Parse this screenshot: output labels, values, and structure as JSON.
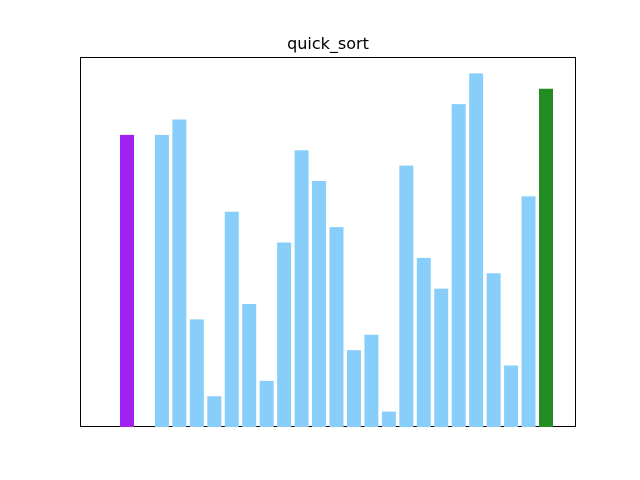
{
  "chart_data": {
    "type": "bar",
    "title": "quick_sort",
    "xlabel": "",
    "ylabel": "",
    "x_ticks": false,
    "y_ticks": false,
    "grid": false,
    "legend": false,
    "ylim": [
      0,
      24
    ],
    "values": [
      19,
      0,
      19,
      20,
      7,
      2,
      14,
      8,
      3,
      12,
      18,
      16,
      13,
      5,
      6,
      1,
      17,
      11,
      9,
      21,
      23,
      10,
      4,
      15,
      22
    ],
    "bar_colors": [
      "#a020f0",
      "#87cefa",
      "#87cefa",
      "#87cefa",
      "#87cefa",
      "#87cefa",
      "#87cefa",
      "#87cefa",
      "#87cefa",
      "#87cefa",
      "#87cefa",
      "#87cefa",
      "#87cefa",
      "#87cefa",
      "#87cefa",
      "#87cefa",
      "#87cefa",
      "#87cefa",
      "#87cefa",
      "#87cefa",
      "#87cefa",
      "#87cefa",
      "#87cefa",
      "#87cefa",
      "#228b22"
    ],
    "highlight_colors": {
      "default": "#87cefa",
      "pivot_scan": "#a020f0",
      "pivot": "#228b22"
    }
  }
}
